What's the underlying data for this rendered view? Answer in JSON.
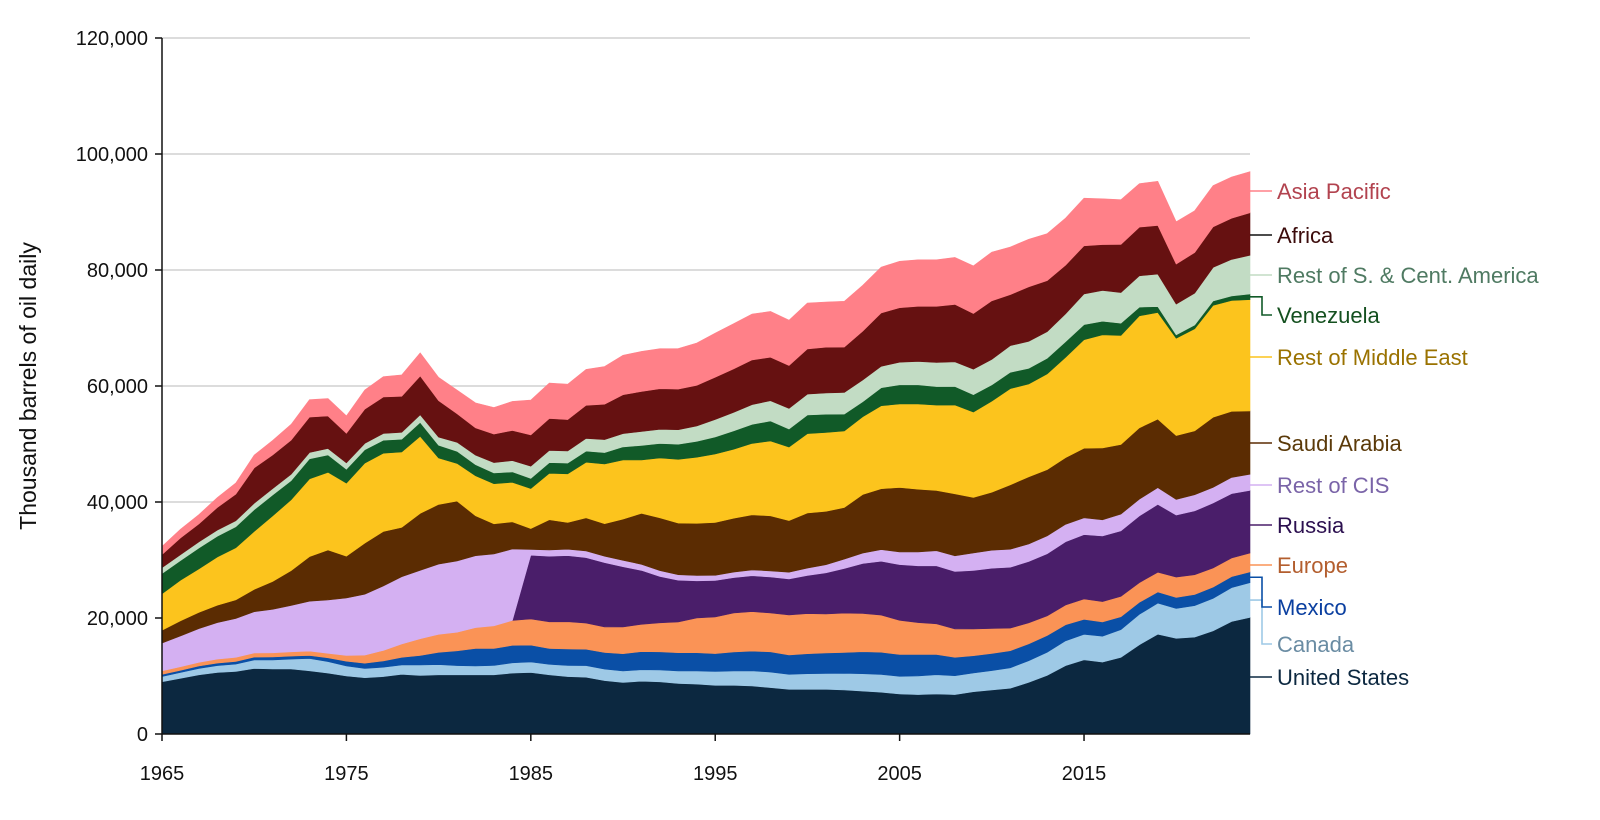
{
  "chart_data": {
    "type": "area",
    "stacked": true,
    "title": "",
    "xlabel": "",
    "ylabel": "Thousand barrels of oil daily",
    "xlim": [
      1965,
      2024
    ],
    "ylim": [
      0,
      120000
    ],
    "x_ticks": [
      "1965",
      "1975",
      "1985",
      "1995",
      "2005",
      "2015"
    ],
    "y_ticks": [
      "0",
      "20,000",
      "40,000",
      "60,000",
      "80,000",
      "100,000",
      "120,000"
    ],
    "grid": true,
    "legend": "right, direct labels",
    "x": [
      1965,
      1966,
      1967,
      1968,
      1969,
      1970,
      1971,
      1972,
      1973,
      1974,
      1975,
      1976,
      1977,
      1978,
      1979,
      1980,
      1981,
      1982,
      1983,
      1984,
      1985,
      1986,
      1987,
      1988,
      1989,
      1990,
      1991,
      1992,
      1993,
      1994,
      1995,
      1996,
      1997,
      1998,
      1999,
      2000,
      2001,
      2002,
      2003,
      2004,
      2005,
      2006,
      2007,
      2008,
      2009,
      2010,
      2011,
      2012,
      2013,
      2014,
      2015,
      2016,
      2017,
      2018,
      2019,
      2020,
      2021,
      2022,
      2023,
      2024
    ],
    "series": [
      {
        "name": "United States",
        "color": "#0c2840",
        "label_color": "#0c2840",
        "values": [
          9000,
          9600,
          10200,
          10600,
          10800,
          11300,
          11200,
          11200,
          10900,
          10500,
          10000,
          9700,
          9900,
          10300,
          10100,
          10200,
          10200,
          10200,
          10200,
          10500,
          10600,
          10200,
          9900,
          9800,
          9200,
          8900,
          9100,
          9000,
          8700,
          8600,
          8400,
          8400,
          8300,
          8000,
          7700,
          7700,
          7700,
          7600,
          7400,
          7200,
          6900,
          6800,
          6900,
          6800,
          7300,
          7600,
          7900,
          8900,
          10100,
          11800,
          12800,
          12400,
          13200,
          15400,
          17200,
          16500,
          16700,
          17800,
          19400,
          20100
        ]
      },
      {
        "name": "Canada",
        "color": "#9ec9e6",
        "label_color": "#6a8ca3",
        "values": [
          920,
          1010,
          1110,
          1190,
          1260,
          1470,
          1580,
          1720,
          2110,
          1990,
          1740,
          1610,
          1620,
          1590,
          1800,
          1760,
          1600,
          1530,
          1620,
          1770,
          1810,
          1810,
          1910,
          2000,
          1990,
          1970,
          1980,
          2060,
          2180,
          2280,
          2400,
          2480,
          2590,
          2670,
          2600,
          2700,
          2730,
          2860,
          3000,
          3080,
          3040,
          3210,
          3320,
          3250,
          3220,
          3330,
          3520,
          3740,
          4000,
          4270,
          4390,
          4470,
          4800,
          5230,
          5370,
          5130,
          5430,
          5580,
          5840,
          6000
        ]
      },
      {
        "name": "Mexico",
        "color": "#0a4fa6",
        "label_color": "#0a3fa0",
        "values": [
          360,
          370,
          410,
          440,
          460,
          490,
          490,
          510,
          520,
          650,
          810,
          900,
          1090,
          1330,
          1630,
          2130,
          2550,
          3010,
          2930,
          3020,
          2910,
          2740,
          2850,
          2820,
          2870,
          2980,
          3130,
          3120,
          3130,
          3140,
          3070,
          3280,
          3410,
          3500,
          3340,
          3450,
          3560,
          3590,
          3790,
          3820,
          3760,
          3690,
          3480,
          3170,
          2980,
          2960,
          2940,
          2910,
          2880,
          2780,
          2590,
          2460,
          2220,
          2070,
          1920,
          1920,
          1930,
          1940,
          1900,
          1850
        ]
      },
      {
        "name": "Europe",
        "color": "#fa9356",
        "label_color": "#b35e2e",
        "values": [
          600,
          620,
          650,
          680,
          700,
          720,
          730,
          750,
          760,
          780,
          1000,
          1400,
          1800,
          2300,
          2900,
          3100,
          3200,
          3600,
          3900,
          4300,
          4500,
          4600,
          4700,
          4500,
          4400,
          4600,
          4700,
          5000,
          5300,
          6000,
          6300,
          6700,
          6800,
          6700,
          6900,
          6900,
          6700,
          6800,
          6600,
          6400,
          5900,
          5500,
          5300,
          4900,
          4600,
          4300,
          3900,
          3600,
          3400,
          3400,
          3500,
          3500,
          3500,
          3400,
          3400,
          3500,
          3400,
          3300,
          3200,
          3250
        ]
      },
      {
        "name": "Russia",
        "color": "#4a1e6a",
        "label_color": "#2c1050",
        "values": [
          null,
          null,
          null,
          null,
          null,
          null,
          null,
          null,
          null,
          null,
          null,
          null,
          null,
          null,
          null,
          null,
          null,
          null,
          null,
          0,
          11000,
          11300,
          11400,
          11300,
          11100,
          10400,
          9300,
          8000,
          7200,
          6400,
          6300,
          6100,
          6200,
          6200,
          6200,
          6600,
          7100,
          7700,
          8600,
          9300,
          9600,
          9800,
          10000,
          9900,
          10100,
          10400,
          10500,
          10600,
          10700,
          10900,
          11100,
          11300,
          11300,
          11500,
          11700,
          10700,
          11000,
          11200,
          11100,
          10800
        ]
      },
      {
        "name": "Rest of CIS",
        "color": "#d4b0f2",
        "label_color": "#7a64a8",
        "values": [
          4800,
          5300,
          5800,
          6300,
          6700,
          7100,
          7500,
          8000,
          8600,
          9200,
          9900,
          10500,
          11100,
          11600,
          11800,
          12100,
          12300,
          12400,
          12400,
          12300,
          1000,
          1100,
          1100,
          1150,
          1100,
          1100,
          1050,
          1000,
          950,
          900,
          900,
          950,
          1000,
          1050,
          1150,
          1250,
          1400,
          1600,
          1800,
          2000,
          2200,
          2400,
          2600,
          2700,
          3000,
          3100,
          3100,
          3000,
          3100,
          3000,
          2900,
          2800,
          2900,
          2900,
          2900,
          2700,
          2800,
          2700,
          2800,
          2800
        ]
      },
      {
        "name": "Saudi Arabia",
        "color": "#5b2c02",
        "label_color": "#5b3a0a",
        "values": [
          2200,
          2600,
          2800,
          3000,
          3200,
          3850,
          4800,
          6000,
          7700,
          8600,
          7200,
          8800,
          9400,
          8500,
          9800,
          10300,
          10300,
          6900,
          5200,
          4700,
          3600,
          5200,
          4600,
          5700,
          5600,
          7100,
          8800,
          9100,
          8900,
          9000,
          9100,
          9300,
          9500,
          9500,
          8900,
          9500,
          9200,
          8900,
          10100,
          10500,
          11100,
          10800,
          10400,
          10700,
          9600,
          10000,
          11100,
          11600,
          11400,
          11500,
          12000,
          12400,
          12000,
          12300,
          11800,
          11000,
          11000,
          12100,
          11400,
          10900
        ]
      },
      {
        "name": "Rest of Middle East",
        "color": "#fcc41d",
        "label_color": "#9a7200",
        "values": [
          6300,
          7000,
          7500,
          8300,
          9000,
          10000,
          11300,
          12200,
          13400,
          13400,
          12600,
          13800,
          13500,
          13000,
          13300,
          8000,
          6500,
          6900,
          6900,
          6800,
          6900,
          8000,
          8400,
          9600,
          10300,
          10200,
          9200,
          10300,
          11000,
          11400,
          11800,
          11900,
          12300,
          12900,
          12700,
          13700,
          13600,
          13200,
          13400,
          14300,
          14400,
          14700,
          14700,
          15300,
          14700,
          15700,
          16600,
          16000,
          16500,
          17300,
          18700,
          19500,
          18800,
          19300,
          18400,
          16800,
          17600,
          19300,
          19100,
          19200
        ]
      },
      {
        "name": "Venezuela",
        "color": "#115a28",
        "label_color": "#14501f",
        "values": [
          3500,
          3400,
          3600,
          3600,
          3600,
          3750,
          3600,
          3300,
          3450,
          3000,
          2400,
          2300,
          2250,
          2200,
          2400,
          2200,
          2100,
          1900,
          1850,
          1800,
          1750,
          1850,
          1850,
          1900,
          1950,
          2250,
          2500,
          2500,
          2600,
          2750,
          2950,
          3150,
          3300,
          3450,
          3100,
          3200,
          3150,
          2900,
          2600,
          3100,
          3300,
          3300,
          3200,
          3200,
          3000,
          2800,
          2800,
          2700,
          2700,
          2700,
          2600,
          2350,
          2100,
          1500,
          1000,
          570,
          660,
          730,
          790,
          960
        ]
      },
      {
        "name": "Rest of S. & Cent. America",
        "color": "#c2dcc4",
        "label_color": "#4f7a62",
        "values": [
          1000,
          1000,
          1050,
          1050,
          1050,
          1100,
          1100,
          1100,
          1100,
          1100,
          1100,
          1100,
          1150,
          1200,
          1300,
          1400,
          1550,
          1650,
          1800,
          1950,
          2100,
          2100,
          2100,
          2200,
          2250,
          2300,
          2400,
          2450,
          2500,
          2650,
          3000,
          3200,
          3400,
          3500,
          3550,
          3600,
          3650,
          3750,
          3750,
          3700,
          3900,
          4050,
          4150,
          4250,
          4400,
          4400,
          4600,
          4650,
          4600,
          4800,
          5300,
          5300,
          5300,
          5400,
          5600,
          5300,
          5500,
          5800,
          6300,
          6700
        ]
      },
      {
        "name": "Africa",
        "color": "#661111",
        "label_color": "#3c0c0c",
        "values": [
          2250,
          2900,
          3100,
          3900,
          4600,
          6100,
          5800,
          5900,
          6100,
          5600,
          5100,
          5900,
          6300,
          6200,
          6700,
          6300,
          4900,
          4700,
          4900,
          5200,
          5400,
          5500,
          5400,
          5700,
          6100,
          6700,
          6900,
          7000,
          7000,
          7000,
          7300,
          7500,
          7700,
          7500,
          7400,
          7800,
          7900,
          7800,
          8400,
          9200,
          9400,
          9500,
          9700,
          9900,
          9600,
          10100,
          8800,
          9400,
          8800,
          8400,
          8300,
          7900,
          8300,
          8400,
          8400,
          6900,
          7000,
          7000,
          7100,
          7300
        ]
      },
      {
        "name": "Asia Pacific",
        "color": "#ff8088",
        "label_color": "#b2434f",
        "values": [
          1400,
          1500,
          1600,
          1700,
          1900,
          2200,
          2500,
          2700,
          3000,
          3000,
          3000,
          3300,
          3500,
          3700,
          4000,
          4000,
          4100,
          4300,
          4600,
          5000,
          6000,
          6100,
          6100,
          6200,
          6500,
          6800,
          6900,
          6900,
          7000,
          7300,
          7600,
          7800,
          7900,
          7900,
          7800,
          7900,
          7800,
          7900,
          7900,
          7900,
          8000,
          8000,
          8000,
          8100,
          8200,
          8400,
          8200,
          8200,
          8100,
          8100,
          8200,
          7900,
          7700,
          7500,
          7600,
          7300,
          7200,
          7100,
          7100,
          7100
        ]
      }
    ]
  }
}
